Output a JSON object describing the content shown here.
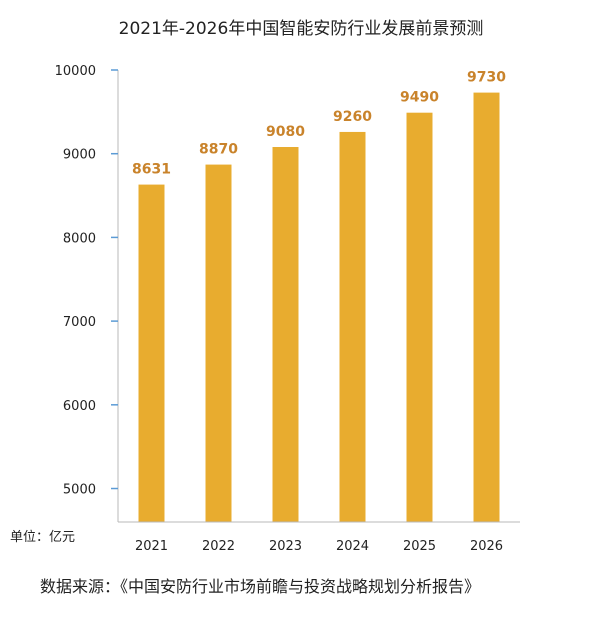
{
  "chart_data": {
    "type": "bar",
    "title": "2021年-2026年中国智能安防行业发展前景预测",
    "categories": [
      "2021",
      "2022",
      "2023",
      "2024",
      "2025",
      "2026"
    ],
    "values": [
      8631,
      8870,
      9080,
      9260,
      9490,
      9730
    ],
    "data_labels": [
      "8631",
      "8870",
      "9080",
      "9260",
      "9490",
      "9730"
    ],
    "yticks": [
      "5000",
      "6000",
      "7000",
      "8000",
      "9000",
      "10000"
    ],
    "ylim": [
      4600,
      10000
    ],
    "unit": "单位：亿元",
    "grid": false,
    "bar_color": "#e8ac2f",
    "label_color": "#c9832b"
  },
  "source": "数据来源：《中国安防行业市场前瞻与投资战略规划分析报告》"
}
